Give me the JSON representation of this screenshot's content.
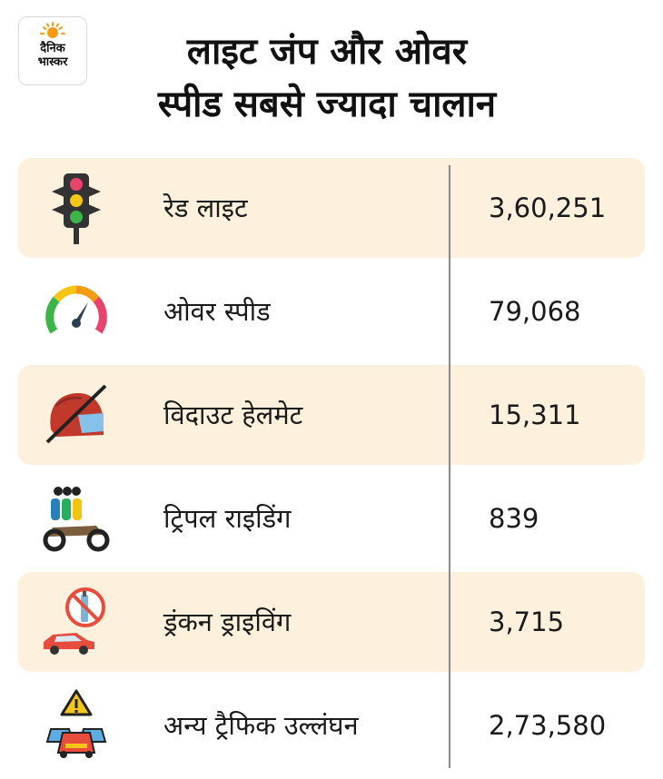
{
  "brand": {
    "line1": "दैनिक",
    "line2": "भास्कर"
  },
  "title": {
    "line1": "लाइट जंप और ओवर",
    "line2": "स्पीड सबसे ज्यादा चालान"
  },
  "chart_data": {
    "type": "table",
    "title": "लाइट जंप और ओवर स्पीड सबसे ज्यादा चालान",
    "categories": [
      "रेड लाइट",
      "ओवर स्पीड",
      "विदाउट हेलमेट",
      "ट्रिपल राइडिंग",
      "ड्रंकन ड्राइविंग",
      "अन्य ट्रैफिक उल्लंघन"
    ],
    "values": [
      360251,
      79068,
      15311,
      839,
      3715,
      273580
    ],
    "value_labels": [
      "3,60,251",
      "79,068",
      "15,311",
      "839",
      "3,715",
      "2,73,580"
    ],
    "icons": [
      "traffic-light-icon",
      "speedometer-icon",
      "no-helmet-icon",
      "triple-riding-icon",
      "drunk-driving-icon",
      "traffic-jam-warning-icon"
    ],
    "shaded_rows": [
      0,
      2,
      4
    ],
    "colors": {
      "shaded_row": "#fdf0dc",
      "divider": "#8a8a8a",
      "logo_sun": "#f39c12"
    }
  }
}
